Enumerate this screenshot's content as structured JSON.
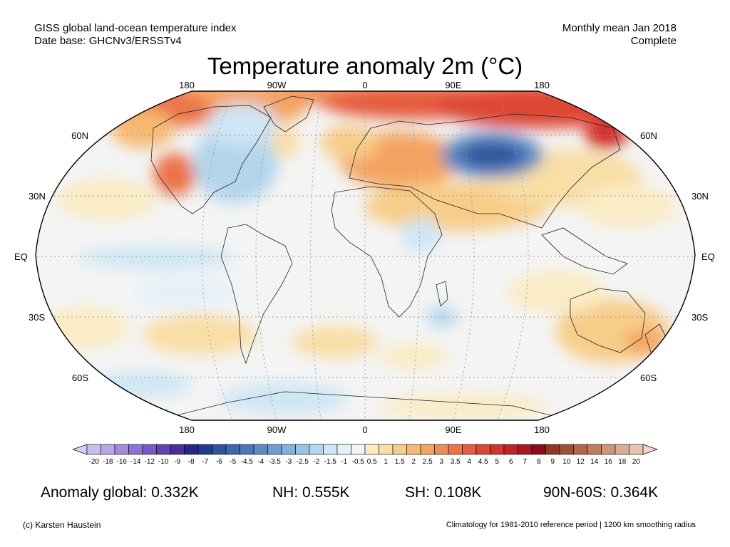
{
  "header": {
    "left_line1": "GISS global land-ocean temperature index",
    "left_line2": "Date base: GHCNv3/ERSSTv4",
    "right_line1": "Monthly mean Jan 2018",
    "right_line2": "Complete"
  },
  "title": "Temperature anomaly 2m (°C)",
  "axes": {
    "lon_top": [
      "180",
      "90W",
      "0",
      "90E",
      "180"
    ],
    "lon_bottom": [
      "180",
      "90W",
      "0",
      "90E",
      "180"
    ],
    "lat_left": [
      "60N",
      "30N",
      "EQ",
      "30S",
      "60S"
    ],
    "lat_right": [
      "60N",
      "30N",
      "EQ",
      "30S",
      "60S"
    ]
  },
  "legend": {
    "ticks": [
      "-20",
      "-18",
      "-16",
      "-14",
      "-12",
      "-10",
      "-9",
      "-8",
      "-7",
      "-6",
      "-5",
      "-4.5",
      "-4",
      "-3.5",
      "-3",
      "-2.5",
      "-2",
      "-1.5",
      "-1",
      "-0.5",
      "0.5",
      "1",
      "1.5",
      "2",
      "2.5",
      "3",
      "3.5",
      "4",
      "4.5",
      "5",
      "6",
      "7",
      "8",
      "9",
      "10",
      "12",
      "14",
      "16",
      "18",
      "20"
    ],
    "colors": [
      "#c9bdf0",
      "#b8a6ea",
      "#a48be2",
      "#8f6fd8",
      "#7a55cc",
      "#6340b4",
      "#4d2c9c",
      "#252a80",
      "#243c8c",
      "#2f549e",
      "#3d66ad",
      "#4d78b8",
      "#5f8ac4",
      "#719dce",
      "#85b0d9",
      "#9bc3e3",
      "#b3d6ec",
      "#cfe6f4",
      "#e4f1f9",
      "#f3f3f3",
      "#faecc6",
      "#f9dea6",
      "#f8cd8a",
      "#f6b973",
      "#f4a462",
      "#f08c55",
      "#ec7349",
      "#e55c3e",
      "#de4636",
      "#d3322e",
      "#c22126",
      "#aa1520",
      "#8c0a18",
      "#8c3a24",
      "#a05234",
      "#b06848",
      "#bf7e5e",
      "#cc9478",
      "#d9ac94",
      "#e6c4b2"
    ],
    "left_arrow_color": "#d8d0f4",
    "right_arrow_color": "#f2d6c8"
  },
  "stats": {
    "global": "Anomaly global: 0.332K",
    "nh": "NH: 0.555K",
    "sh": "SH: 0.108K",
    "polar": "90N-60S: 0.364K"
  },
  "footer": {
    "credit": "(c) Karsten Haustein",
    "climatology": "Climatology for 1981-2010 reference period | 1200 km smoothing radius"
  }
}
